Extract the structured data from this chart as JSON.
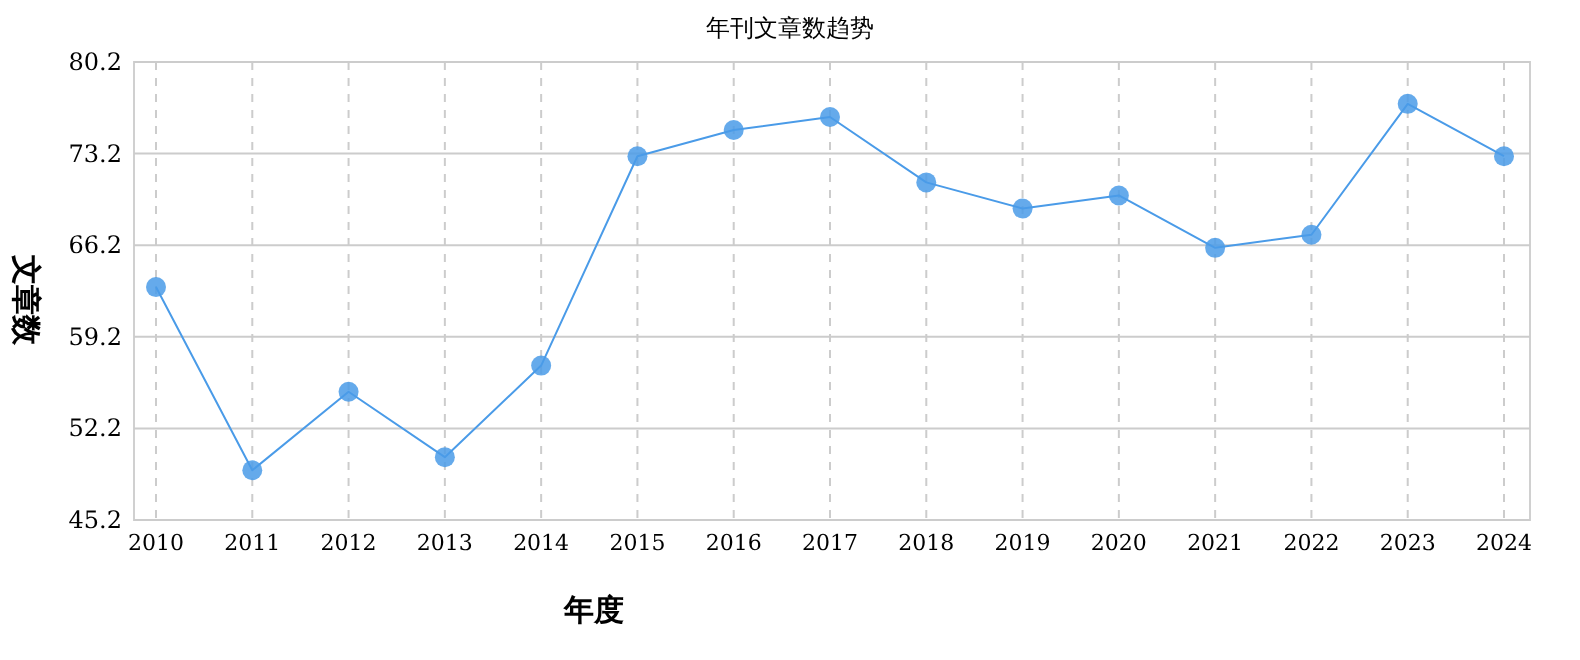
{
  "chart_data": {
    "type": "line",
    "title": "年刊文章数趋势",
    "xlabel": "年度",
    "ylabel": "文章数",
    "categories": [
      "2010",
      "2011",
      "2012",
      "2013",
      "2014",
      "2015",
      "2016",
      "2017",
      "2018",
      "2019",
      "2020",
      "2021",
      "2022",
      "2023",
      "2024"
    ],
    "series": [
      {
        "color": "#4a9be8",
        "values": [
          63,
          49,
          55,
          50,
          57,
          73,
          75,
          76,
          71,
          69,
          70,
          66,
          67,
          77,
          73
        ]
      }
    ],
    "ylim": [
      45.2,
      80.2
    ],
    "yticks": [
      45.2,
      52.2,
      59.2,
      66.2,
      73.2,
      80.2
    ],
    "grid": true,
    "marker": "circle"
  }
}
